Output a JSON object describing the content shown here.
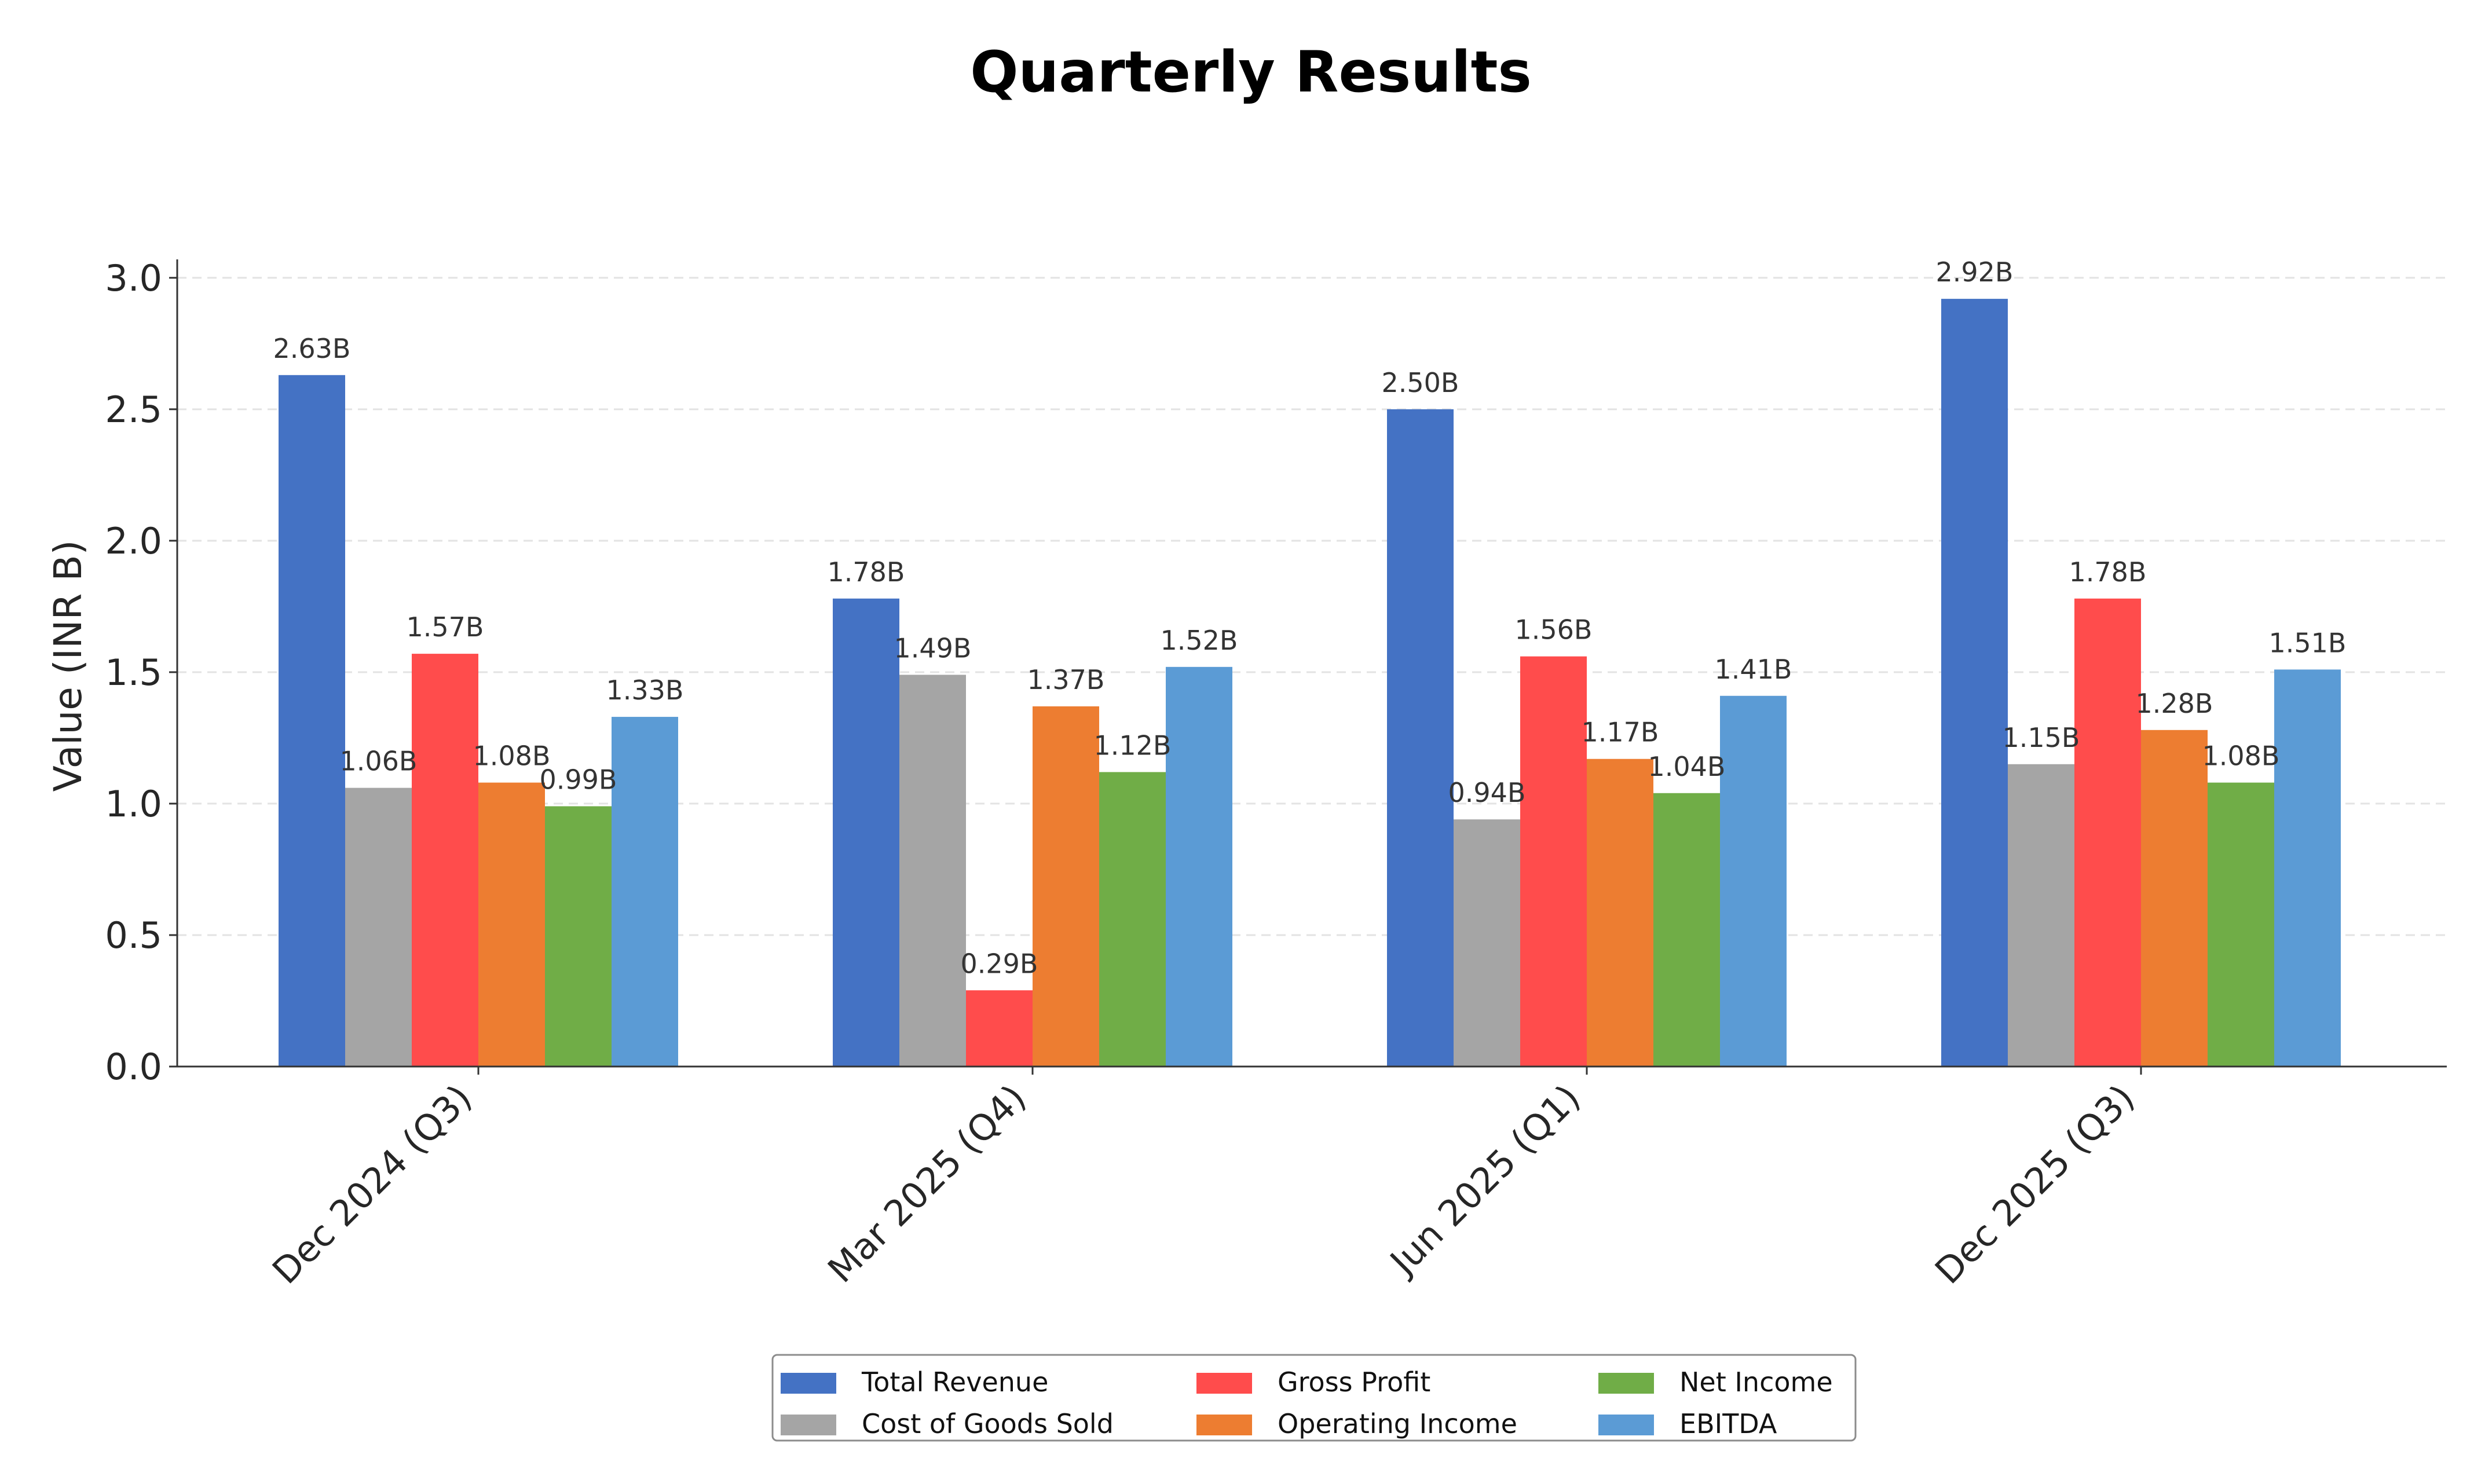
{
  "chart_data": {
    "type": "bar",
    "title": "Quarterly Results",
    "xlabel": "",
    "ylabel": "Value (INR B)",
    "ylim": [
      0,
      3.07
    ],
    "yticks": [
      0.0,
      0.5,
      1.0,
      1.5,
      2.0,
      2.5,
      3.0
    ],
    "ytick_labels": [
      "0.0",
      "0.5",
      "1.0",
      "1.5",
      "2.0",
      "2.5",
      "3.0"
    ],
    "grid": "horizontal dashed",
    "legend_position": "bottom-center",
    "legend_columns": 3,
    "categories": [
      "Dec 2024 (Q3)",
      "Mar 2025 (Q4)",
      "Jun 2025 (Q1)",
      "Dec 2025 (Q3)"
    ],
    "series": [
      {
        "name": "Total Revenue",
        "color": "#4472C4",
        "values": [
          2.63,
          1.78,
          2.5,
          2.92
        ],
        "labels": [
          "2.63B",
          "1.78B",
          "2.50B",
          "2.92B"
        ]
      },
      {
        "name": "Cost of Goods Sold",
        "color": "#A5A5A5",
        "values": [
          1.06,
          1.49,
          0.94,
          1.15
        ],
        "labels": [
          "1.06B",
          "1.49B",
          "0.94B",
          "1.15B"
        ]
      },
      {
        "name": "Gross Profit",
        "color": "#FF4C4C",
        "values": [
          1.57,
          0.29,
          1.56,
          1.78
        ],
        "labels": [
          "1.57B",
          "0.29B",
          "1.56B",
          "1.78B"
        ]
      },
      {
        "name": "Operating Income",
        "color": "#ED7D31",
        "values": [
          1.08,
          1.37,
          1.17,
          1.28
        ],
        "labels": [
          "1.08B",
          "1.37B",
          "1.17B",
          "1.28B"
        ]
      },
      {
        "name": "Net Income",
        "color": "#70AD47",
        "values": [
          0.99,
          1.12,
          1.04,
          1.08
        ],
        "labels": [
          "0.99B",
          "1.12B",
          "1.04B",
          "1.08B"
        ]
      },
      {
        "name": "EBITDA",
        "color": "#5B9BD5",
        "values": [
          1.33,
          1.52,
          1.41,
          1.51
        ],
        "labels": [
          "1.33B",
          "1.52B",
          "1.41B",
          "1.51B"
        ]
      }
    ]
  }
}
